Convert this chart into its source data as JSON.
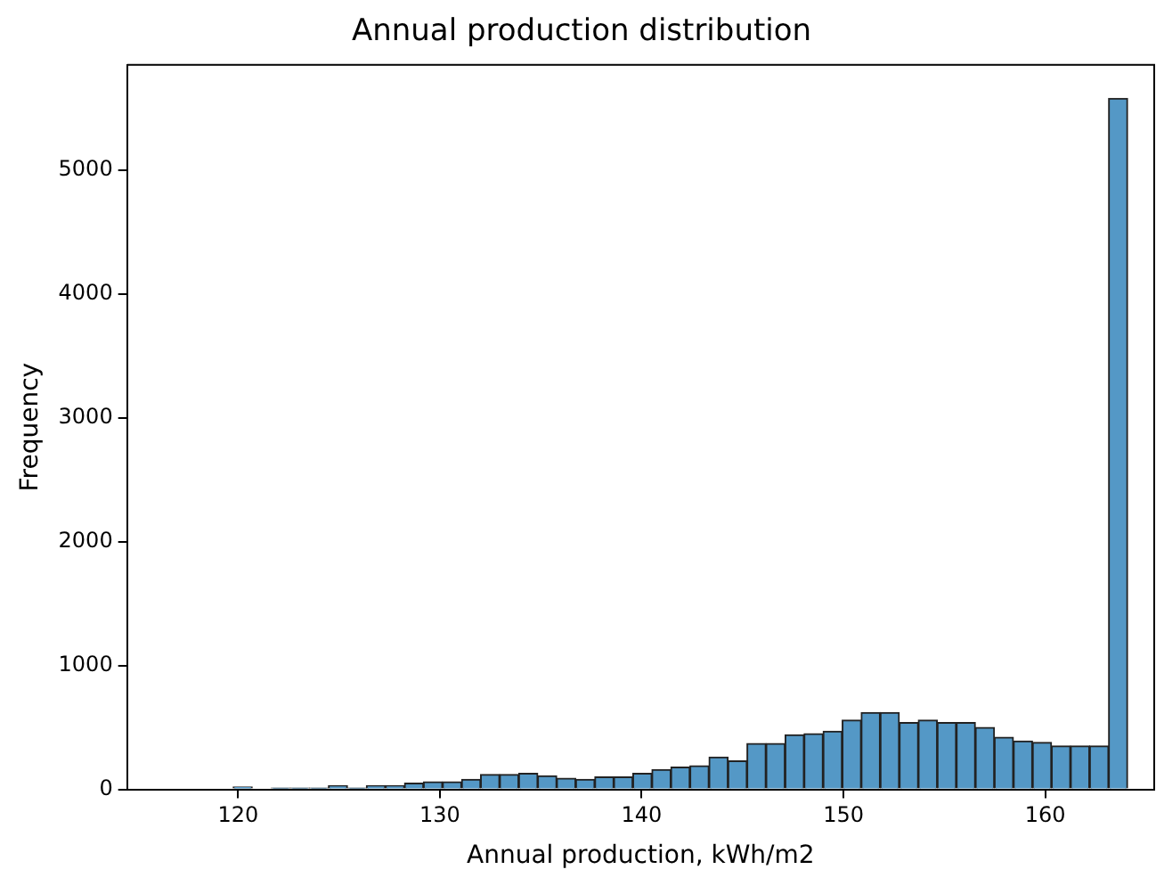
{
  "chart_data": {
    "type": "histogram",
    "title": "Annual production distribution",
    "xlabel": "Annual production, kWh/m2",
    "ylabel": "Frequency",
    "bins": [
      119.76,
      120.7,
      121.65,
      122.59,
      123.53,
      124.48,
      125.42,
      126.36,
      127.3,
      128.25,
      129.19,
      130.13,
      131.08,
      132.02,
      132.96,
      133.91,
      134.85,
      135.79,
      136.73,
      137.68,
      138.62,
      139.56,
      140.51,
      141.45,
      142.39,
      143.34,
      144.28,
      145.22,
      146.16,
      147.11,
      148.05,
      148.99,
      149.94,
      150.88,
      151.82,
      152.77,
      153.71,
      154.65,
      155.59,
      156.54,
      157.48,
      158.42,
      159.37,
      160.31,
      161.25,
      162.2,
      163.14,
      164.08
    ],
    "values": [
      20,
      0,
      10,
      10,
      10,
      30,
      10,
      30,
      30,
      50,
      60,
      60,
      80,
      120,
      120,
      130,
      110,
      90,
      80,
      100,
      100,
      130,
      160,
      180,
      190,
      260,
      230,
      370,
      370,
      440,
      450,
      470,
      560,
      620,
      620,
      540,
      560,
      540,
      540,
      500,
      420,
      390,
      380,
      350,
      350,
      350,
      5580
    ],
    "color": "#5498c6",
    "xlim": [
      114.5,
      165.4
    ],
    "xticks": [
      120,
      130,
      140,
      150,
      160
    ],
    "ylim": [
      0,
      5850
    ],
    "yticks": [
      0,
      1000,
      2000,
      3000,
      4000,
      5000
    ],
    "grid": false,
    "legend": false
  }
}
